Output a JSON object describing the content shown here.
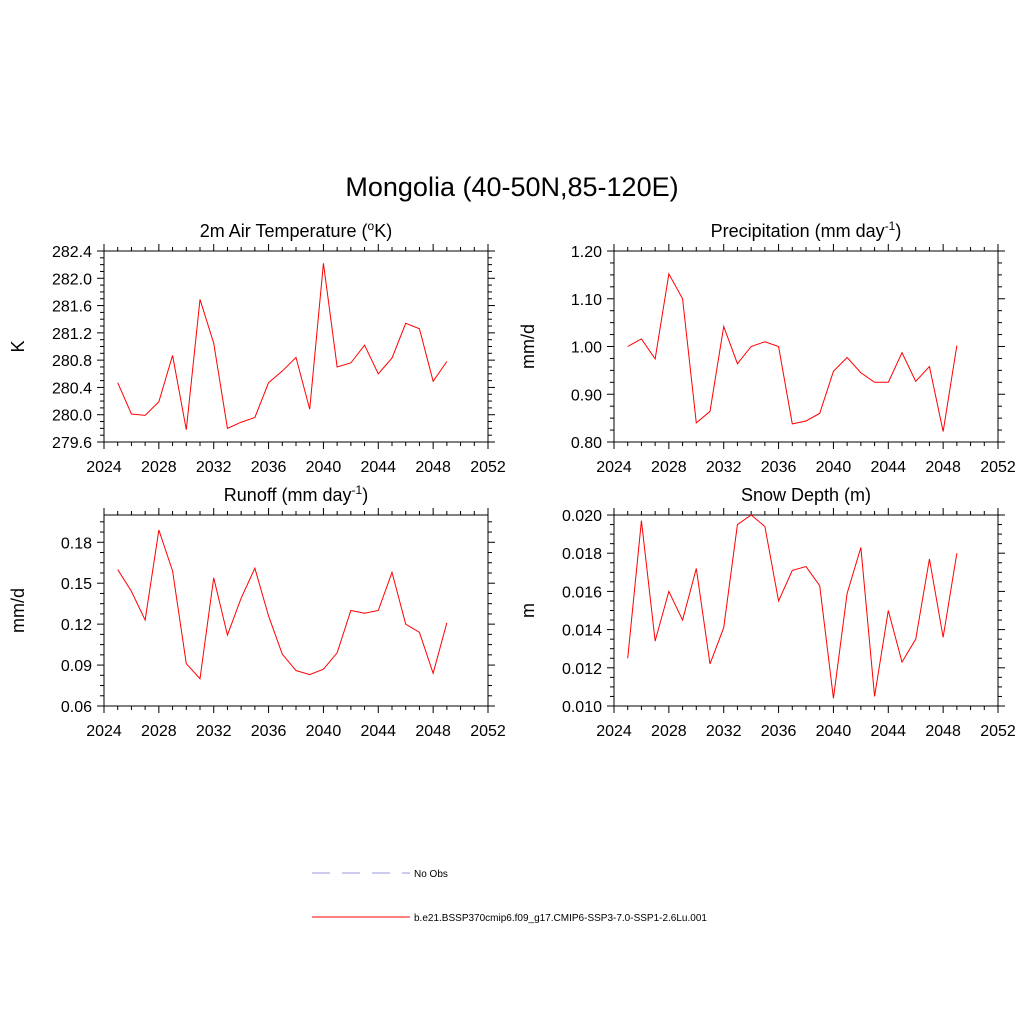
{
  "figure": {
    "title": "Mongolia (40-50N,85-120E)"
  },
  "colors": {
    "series": "#ff0000",
    "obs": "#9999dd",
    "axis": "#000000"
  },
  "chart_data": [
    {
      "type": "line",
      "title_main": "2m Air Temperature (",
      "title_sup": "o",
      "title_tail": "K)",
      "ylabel": "K",
      "xlim": [
        2024,
        2052
      ],
      "ylim": [
        279.6,
        282.4
      ],
      "xticks": [
        "2024",
        "2028",
        "2032",
        "2036",
        "2040",
        "2044",
        "2048",
        "2052"
      ],
      "yticks": [
        "279.6",
        "280.0",
        "280.4",
        "280.8",
        "281.2",
        "281.6",
        "282.0",
        "282.4"
      ],
      "series": [
        {
          "x": [
            2025,
            2026,
            2027,
            2028,
            2029,
            2030,
            2031,
            2032,
            2033,
            2034,
            2035,
            2036,
            2037,
            2038,
            2039,
            2040,
            2041,
            2042,
            2043,
            2044,
            2045,
            2046,
            2047,
            2048,
            2049
          ],
          "values": [
            280.47,
            280.01,
            279.99,
            280.19,
            280.87,
            279.78,
            281.69,
            281.05,
            279.8,
            279.89,
            279.96,
            280.47,
            280.64,
            280.84,
            280.08,
            282.22,
            280.7,
            280.76,
            281.02,
            280.6,
            280.83,
            281.34,
            281.26,
            280.49,
            280.78
          ]
        }
      ]
    },
    {
      "type": "line",
      "title_main": "Precipitation (mm day",
      "title_sup": "-1",
      "title_tail": ")",
      "ylabel": "mm/d",
      "xlim": [
        2024,
        2052
      ],
      "ylim": [
        0.8,
        1.2
      ],
      "xticks": [
        "2024",
        "2028",
        "2032",
        "2036",
        "2040",
        "2044",
        "2048",
        "2052"
      ],
      "yticks": [
        "0.80",
        "0.90",
        "1.00",
        "1.10",
        "1.20"
      ],
      "series": [
        {
          "x": [
            2025,
            2026,
            2027,
            2028,
            2029,
            2030,
            2031,
            2032,
            2033,
            2034,
            2035,
            2036,
            2037,
            2038,
            2039,
            2040,
            2041,
            2042,
            2043,
            2044,
            2045,
            2046,
            2047,
            2048,
            2049
          ],
          "values": [
            1.0,
            1.016,
            0.974,
            1.152,
            1.1,
            0.84,
            0.864,
            1.042,
            0.964,
            1.0,
            1.01,
            1.0,
            0.838,
            0.844,
            0.86,
            0.948,
            0.977,
            0.945,
            0.925,
            0.925,
            0.987,
            0.927,
            0.958,
            0.822,
            1.002
          ]
        }
      ]
    },
    {
      "type": "line",
      "title_main": "Runoff (mm day",
      "title_sup": "-1",
      "title_tail": ")",
      "ylabel": "mm/d",
      "xlim": [
        2024,
        2052
      ],
      "ylim": [
        0.06,
        0.2
      ],
      "xticks": [
        "2024",
        "2028",
        "2032",
        "2036",
        "2040",
        "2044",
        "2048",
        "2052"
      ],
      "yticks": [
        "0.06",
        "0.09",
        "0.12",
        "0.15",
        "0.18"
      ],
      "series": [
        {
          "x": [
            2025,
            2026,
            2027,
            2028,
            2029,
            2030,
            2031,
            2032,
            2033,
            2034,
            2035,
            2036,
            2037,
            2038,
            2039,
            2040,
            2041,
            2042,
            2043,
            2044,
            2045,
            2046,
            2047,
            2048,
            2049
          ],
          "values": [
            0.16,
            0.144,
            0.123,
            0.189,
            0.159,
            0.091,
            0.08,
            0.154,
            0.112,
            0.139,
            0.161,
            0.126,
            0.098,
            0.086,
            0.083,
            0.087,
            0.099,
            0.13,
            0.128,
            0.13,
            0.158,
            0.12,
            0.114,
            0.084,
            0.121
          ]
        }
      ]
    },
    {
      "type": "line",
      "title_main": "Snow Depth (m)",
      "title_sup": "",
      "title_tail": "",
      "ylabel": "m",
      "xlim": [
        2024,
        2052
      ],
      "ylim": [
        0.01,
        0.02
      ],
      "xticks": [
        "2024",
        "2028",
        "2032",
        "2036",
        "2040",
        "2044",
        "2048",
        "2052"
      ],
      "yticks": [
        "0.010",
        "0.012",
        "0.014",
        "0.016",
        "0.018",
        "0.020"
      ],
      "series": [
        {
          "x": [
            2025,
            2026,
            2027,
            2028,
            2029,
            2030,
            2031,
            2032,
            2033,
            2034,
            2035,
            2036,
            2037,
            2038,
            2039,
            2040,
            2041,
            2042,
            2043,
            2044,
            2045,
            2046,
            2047,
            2048,
            2049
          ],
          "values": [
            0.0125,
            0.0197,
            0.0134,
            0.016,
            0.0145,
            0.0172,
            0.0122,
            0.0141,
            0.0195,
            0.02,
            0.0194,
            0.0155,
            0.0171,
            0.0173,
            0.0163,
            0.0104,
            0.0159,
            0.0183,
            0.0105,
            0.015,
            0.0123,
            0.0135,
            0.0177,
            0.0136,
            0.018
          ]
        }
      ]
    }
  ],
  "legend": {
    "items": [
      {
        "label": "No Obs",
        "style": "dashed"
      },
      {
        "label": "b.e21.BSSP370cmip6.f09_g17.CMIP6-SSP3-7.0-SSP1-2.6Lu.001",
        "style": "solid"
      }
    ]
  }
}
